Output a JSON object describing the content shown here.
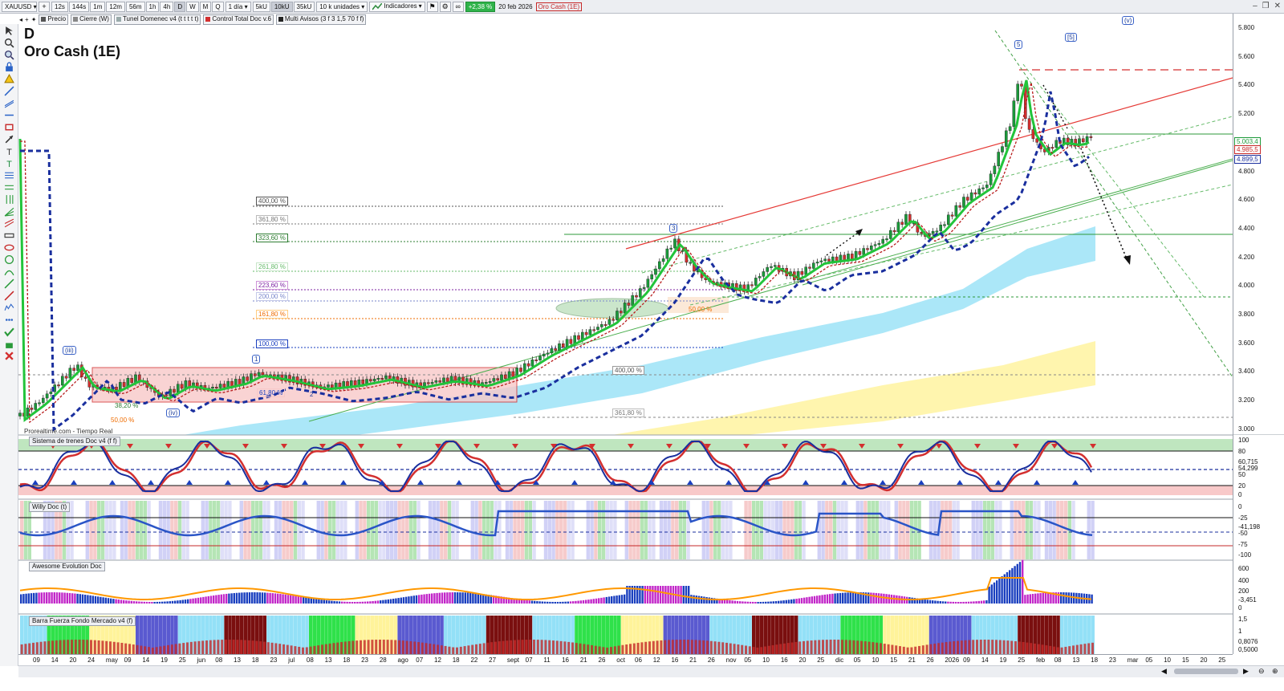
{
  "toolbar": {
    "symbol": "XAUUSD",
    "tf_buttons": [
      "12s",
      "144s",
      "1m",
      "12m",
      "56m",
      "1h",
      "4h",
      "D",
      "W",
      "M",
      "Q"
    ],
    "tf_active": "D",
    "period": "1 día",
    "qty_buttons": [
      "5kU",
      "10kU",
      "35kU"
    ],
    "qty_active": "10kU",
    "units": "10 k unidades",
    "indicators": "Indicadores",
    "change": "+2,38 %",
    "date": "20 feb 2026",
    "chart_name": "Oro Cash (1E)"
  },
  "legend": [
    "Precio",
    "Cierre (W)",
    "Tunel Domenec v4 (t t t t t)",
    "Control Total Doc v.6",
    "Multi Avisos (3 f 3 1,5 70 f f)"
  ],
  "chart": {
    "title_line1": "D",
    "title_line2": "Oro Cash (1E)",
    "credit": "Prorealtime.com - Tiempo Real",
    "price_ticks": [
      "5.800",
      "5.600",
      "5.400",
      "5.200",
      "5.000",
      "4.800",
      "4.600",
      "4.400",
      "4.200",
      "4.000",
      "3.800",
      "3.600",
      "3.400",
      "3.200",
      "3.000"
    ],
    "price_boxes": [
      {
        "text": "5.003,4",
        "color": "#1e9a3a"
      },
      {
        "text": "4.985,5",
        "color": "#c62828"
      },
      {
        "text": "4.899,5",
        "color": "#1a2f9e"
      }
    ],
    "fib_levels": [
      {
        "text": "400,00 %",
        "color": "#555555"
      },
      {
        "text": "361,80 %",
        "color": "#777777"
      },
      {
        "text": "323,60 %",
        "color": "#2e7d32"
      },
      {
        "text": "261,80 %",
        "color": "#66bb6a"
      },
      {
        "text": "223,60 %",
        "color": "#7b1fa2"
      },
      {
        "text": "200,00 %",
        "color": "#7986cb"
      },
      {
        "text": "161,80 %",
        "color": "#ef6c00"
      },
      {
        "text": "100,00 %",
        "color": "#1a3fbf"
      }
    ],
    "fib_low": [
      {
        "text": "400,00 %"
      },
      {
        "text": "361,80 %"
      }
    ],
    "wave_labels": [
      "(iii)",
      "(iv)",
      "1",
      "2",
      "3",
      "5",
      "[5]",
      "(v)"
    ],
    "box_labels": [
      "61,80 %",
      "50,00 %",
      "38,20 %",
      "50,00 %"
    ]
  },
  "panels": {
    "trenes": {
      "label": "Sistema de trenes Doc v4 (f f)",
      "ticks": [
        "100",
        "80",
        "60,715",
        "54,299",
        "50",
        "20",
        "0"
      ]
    },
    "willy": {
      "label": "Willy Doc (t)",
      "ticks": [
        "0",
        "-25",
        "-41,198",
        "-50",
        "-75",
        "-100"
      ]
    },
    "awesome": {
      "label": "Awesome Evolution Doc",
      "ticks": [
        "600",
        "400",
        "200",
        "-3,451",
        "0"
      ]
    },
    "barra": {
      "label": "Barra Fuerza Fondo Mercado v4 (f)",
      "ticks": [
        "1,5",
        "1",
        "0,8076",
        "0,5000"
      ]
    }
  },
  "xaxis": [
    "09",
    "14",
    "20",
    "24",
    "may",
    "09",
    "14",
    "19",
    "25",
    "jun",
    "08",
    "13",
    "18",
    "23",
    "jul",
    "08",
    "13",
    "18",
    "23",
    "28",
    "ago",
    "07",
    "12",
    "18",
    "22",
    "27",
    "sept",
    "07",
    "11",
    "16",
    "21",
    "26",
    "oct",
    "06",
    "12",
    "16",
    "21",
    "26",
    "nov",
    "05",
    "10",
    "16",
    "20",
    "25",
    "dic",
    "05",
    "10",
    "15",
    "21",
    "26",
    "2026",
    "09",
    "14",
    "19",
    "25",
    "feb",
    "08",
    "13",
    "18",
    "23",
    "mar",
    "05",
    "10",
    "15",
    "20",
    "25"
  ],
  "colors": {
    "green": "#22c43a",
    "red": "#d32f2f",
    "blue": "#1a2f9e",
    "cyan": "#8fdff5",
    "yellow": "#fff39a",
    "accent": "#2fb34a"
  }
}
